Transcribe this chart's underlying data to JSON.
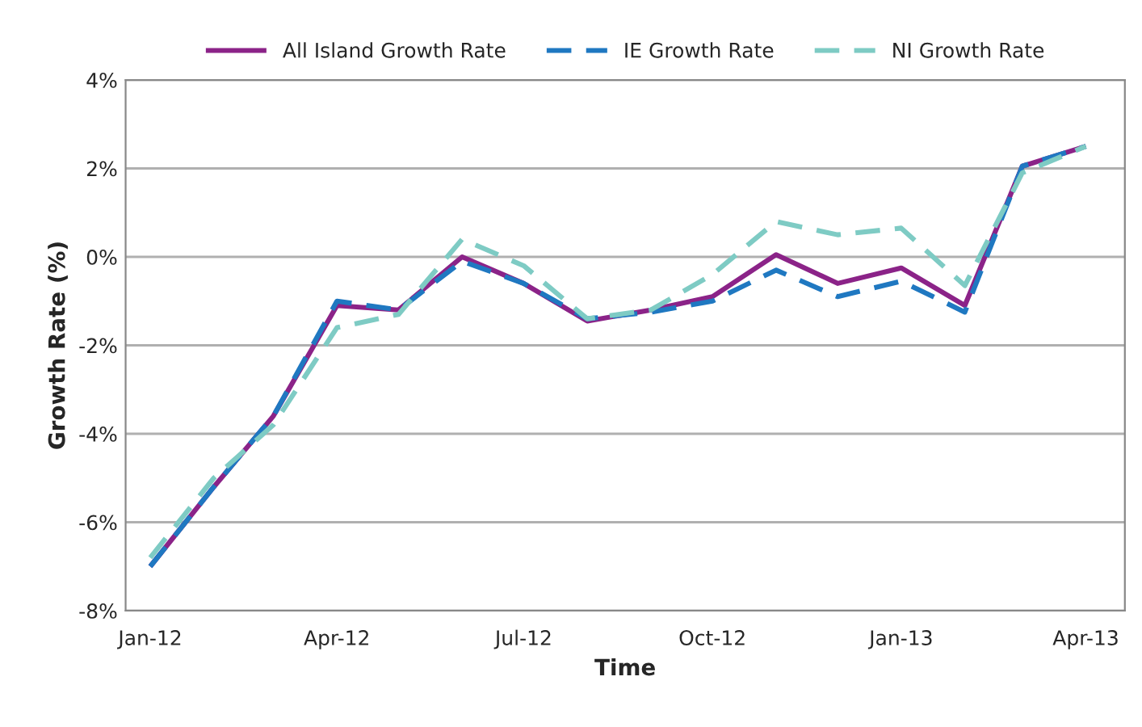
{
  "chart_data": {
    "type": "line",
    "xlabel": "Time",
    "ylabel": "Growth Rate (%)",
    "x": [
      "2012-01",
      "2012-02",
      "2012-03",
      "2012-04",
      "2012-05",
      "2012-06",
      "2012-07",
      "2012-08",
      "2012-09",
      "2012-10",
      "2012-11",
      "2012-12",
      "2013-01",
      "2013-02",
      "2013-03",
      "2013-04"
    ],
    "series": [
      {
        "name": "All Island Growth Rate",
        "color": "#8b2388",
        "line_style": "solid",
        "values": [
          -7.0,
          -5.2,
          -3.6,
          -1.1,
          -1.2,
          0.0,
          -0.6,
          -1.45,
          -1.2,
          -0.9,
          0.05,
          -0.6,
          -0.25,
          -1.1,
          2.05,
          2.5
        ]
      },
      {
        "name": "IE Growth Rate",
        "color": "#1f78c1",
        "line_style": "dashed",
        "values": [
          -7.0,
          -5.2,
          -3.6,
          -1.0,
          -1.2,
          -0.1,
          -0.6,
          -1.4,
          -1.25,
          -1.0,
          -0.3,
          -0.9,
          -0.55,
          -1.25,
          2.05,
          2.5
        ]
      },
      {
        "name": "NI Growth Rate",
        "color": "#7ecbc4",
        "line_style": "dashed",
        "values": [
          -6.8,
          -5.0,
          -3.8,
          -1.6,
          -1.3,
          0.4,
          -0.2,
          -1.4,
          -1.2,
          -0.4,
          0.8,
          0.5,
          0.65,
          -0.65,
          1.9,
          2.5
        ]
      }
    ],
    "xlim": [
      "2011-12-20",
      "2013-04-20"
    ],
    "xticks": [
      {
        "value": "2012-01",
        "label": "Jan-12"
      },
      {
        "value": "2012-04",
        "label": "Apr-12"
      },
      {
        "value": "2012-07",
        "label": "Jul-12"
      },
      {
        "value": "2012-10",
        "label": "Oct-12"
      },
      {
        "value": "2013-01",
        "label": "Jan-13"
      },
      {
        "value": "2013-04",
        "label": "Apr-13"
      }
    ],
    "ylim": [
      -8,
      4
    ],
    "yticks": [
      {
        "value": -8,
        "label": "-8%"
      },
      {
        "value": -6,
        "label": "-6%"
      },
      {
        "value": -4,
        "label": "-4%"
      },
      {
        "value": -2,
        "label": "-2%"
      },
      {
        "value": 0,
        "label": "0%"
      },
      {
        "value": 2,
        "label": "2%"
      },
      {
        "value": 4,
        "label": "4%"
      }
    ],
    "grid": "y",
    "legend": "top",
    "marker": "none"
  }
}
